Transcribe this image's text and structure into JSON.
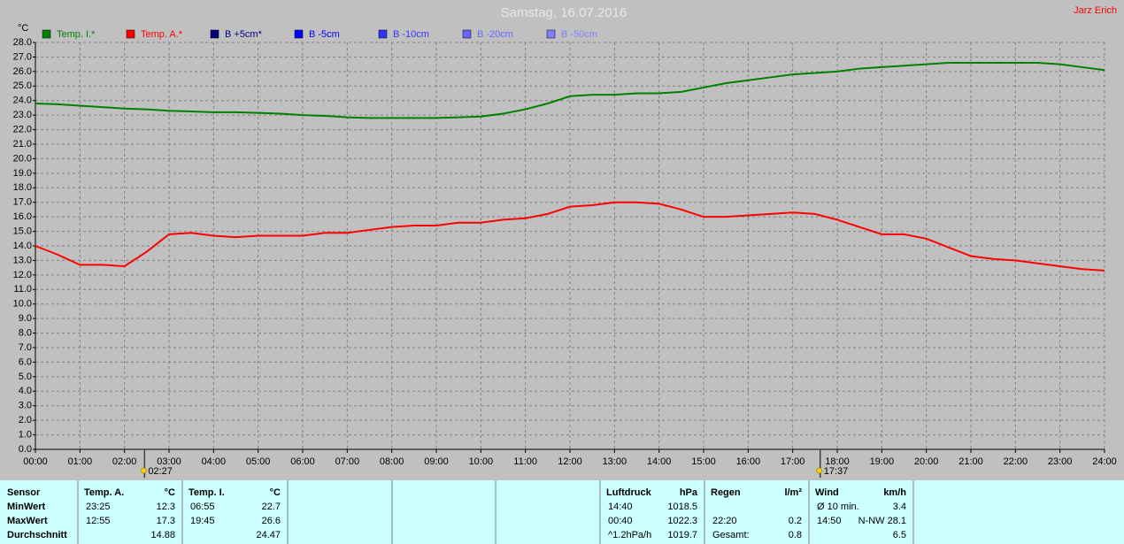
{
  "chart_data": {
    "type": "line",
    "title": "Samstag, 16.07.2016",
    "author": "Jarz Erich",
    "y_label": "°C",
    "x": [
      0,
      0.5,
      1,
      1.5,
      2,
      2.5,
      3,
      3.5,
      4,
      4.5,
      5,
      5.5,
      6,
      6.5,
      7,
      7.5,
      8,
      8.5,
      9,
      9.5,
      10,
      10.5,
      11,
      11.5,
      12,
      12.5,
      13,
      13.5,
      14,
      14.5,
      15,
      15.5,
      16,
      16.5,
      17,
      17.5,
      18,
      18.5,
      19,
      19.5,
      20,
      20.5,
      21,
      21.5,
      22,
      22.5,
      23,
      23.5,
      24
    ],
    "series": [
      {
        "name": "Temp. I.*",
        "color": "#008000",
        "values": [
          23.8,
          23.75,
          23.65,
          23.55,
          23.45,
          23.4,
          23.3,
          23.25,
          23.2,
          23.2,
          23.15,
          23.1,
          23.0,
          22.95,
          22.85,
          22.8,
          22.8,
          22.8,
          22.8,
          22.85,
          22.9,
          23.1,
          23.4,
          23.8,
          24.3,
          24.4,
          24.4,
          24.5,
          24.5,
          24.6,
          24.9,
          25.2,
          25.4,
          25.6,
          25.8,
          25.9,
          26.0,
          26.2,
          26.3,
          26.4,
          26.5,
          26.6,
          26.6,
          26.6,
          26.6,
          26.6,
          26.5,
          26.3,
          26.1
        ]
      },
      {
        "name": "Temp. A.*",
        "color": "#ff0000",
        "values": [
          14.0,
          13.4,
          12.7,
          12.7,
          12.6,
          13.6,
          14.8,
          14.9,
          14.7,
          14.6,
          14.7,
          14.7,
          14.7,
          14.9,
          14.9,
          15.1,
          15.3,
          15.4,
          15.4,
          15.6,
          15.6,
          15.8,
          15.9,
          16.2,
          16.7,
          16.8,
          17.0,
          17.0,
          16.9,
          16.5,
          16.0,
          16.0,
          16.1,
          16.2,
          16.3,
          16.2,
          15.8,
          15.3,
          14.8,
          14.8,
          14.5,
          13.9,
          13.3,
          13.1,
          13.0,
          12.8,
          12.6,
          12.4,
          12.3
        ]
      },
      {
        "name": "B +5cm*",
        "color": "#000080"
      },
      {
        "name": "B -5cm",
        "color": "#0000ff"
      },
      {
        "name": "B -10cm",
        "color": "#3333ff"
      },
      {
        "name": "B -20cm",
        "color": "#6666ff"
      },
      {
        "name": "B -50cm",
        "color": "#8080ff"
      }
    ],
    "xlim": [
      0,
      24
    ],
    "xticks": [
      {
        "value": 0,
        "label": "00:00"
      },
      {
        "value": 1,
        "label": "01:00"
      },
      {
        "value": 2,
        "label": "02:00"
      },
      {
        "value": 3,
        "label": "03:00"
      },
      {
        "value": 4,
        "label": "04:00"
      },
      {
        "value": 5,
        "label": "05:00"
      },
      {
        "value": 6,
        "label": "06:00"
      },
      {
        "value": 7,
        "label": "07:00"
      },
      {
        "value": 8,
        "label": "08:00"
      },
      {
        "value": 9,
        "label": "09:00"
      },
      {
        "value": 10,
        "label": "10:00"
      },
      {
        "value": 11,
        "label": "11:00"
      },
      {
        "value": 12,
        "label": "12:00"
      },
      {
        "value": 13,
        "label": "13:00"
      },
      {
        "value": 14,
        "label": "14:00"
      },
      {
        "value": 15,
        "label": "15:00"
      },
      {
        "value": 16,
        "label": "16:00"
      },
      {
        "value": 17,
        "label": "17:00"
      },
      {
        "value": 18,
        "label": "18:00"
      },
      {
        "value": 19,
        "label": "19:00"
      },
      {
        "value": 20,
        "label": "20:00"
      },
      {
        "value": 21,
        "label": "21:00"
      },
      {
        "value": 22,
        "label": "22:00"
      },
      {
        "value": 23,
        "label": "23:00"
      },
      {
        "value": 24,
        "label": "24:00"
      }
    ],
    "ylim": [
      0,
      28
    ],
    "yticks": [
      {
        "value": 0,
        "label": "0.0"
      },
      {
        "value": 1,
        "label": "1.0"
      },
      {
        "value": 2,
        "label": "2.0"
      },
      {
        "value": 3,
        "label": "3.0"
      },
      {
        "value": 4,
        "label": "4.0"
      },
      {
        "value": 5,
        "label": "5.0"
      },
      {
        "value": 6,
        "label": "6.0"
      },
      {
        "value": 7,
        "label": "7.0"
      },
      {
        "value": 8,
        "label": "8.0"
      },
      {
        "value": 9,
        "label": "9.0"
      },
      {
        "value": 10,
        "label": "10.0"
      },
      {
        "value": 11,
        "label": "11.0"
      },
      {
        "value": 12,
        "label": "12.0"
      },
      {
        "value": 13,
        "label": "13.0"
      },
      {
        "value": 14,
        "label": "14.0"
      },
      {
        "value": 15,
        "label": "15.0"
      },
      {
        "value": 16,
        "label": "16.0"
      },
      {
        "value": 17,
        "label": "17.0"
      },
      {
        "value": 18,
        "label": "18.0"
      },
      {
        "value": 19,
        "label": "19.0"
      },
      {
        "value": 20,
        "label": "20.0"
      },
      {
        "value": 21,
        "label": "21.0"
      },
      {
        "value": 22,
        "label": "22.0"
      },
      {
        "value": 23,
        "label": "23.0"
      },
      {
        "value": 24,
        "label": "24.0"
      },
      {
        "value": 25,
        "label": "25.0"
      },
      {
        "value": 26,
        "label": "26.0"
      },
      {
        "value": 27,
        "label": "27.0"
      },
      {
        "value": 28,
        "label": "28.0"
      }
    ],
    "grid": true,
    "sun_events": [
      "02:27",
      "17:37"
    ]
  },
  "stats": {
    "row_labels": [
      "Sensor",
      "MinWert",
      "MaxWert",
      "Durchschnitt"
    ],
    "groups": [
      {
        "title": "Temp. A.",
        "unit": "°C",
        "rows": [
          [
            "23:25",
            12.3
          ],
          [
            "12:55",
            17.3
          ],
          [
            null,
            14.88
          ]
        ]
      },
      {
        "title": "Temp. I.",
        "unit": "°C",
        "rows": [
          [
            "06:55",
            22.7
          ],
          [
            "19:45",
            26.6
          ],
          [
            null,
            24.47
          ]
        ]
      },
      {
        "title": "Luftdruck",
        "unit": "hPa",
        "rows": [
          [
            "14:40",
            1018.5
          ],
          [
            "00:40",
            1022.3
          ],
          [
            "^1.2hPa/h",
            1019.7
          ]
        ]
      },
      {
        "title": "Regen",
        "unit": "l/m²",
        "rows": [
          [
            null,
            null
          ],
          [
            "22:20",
            0.2
          ],
          [
            "Gesamt:",
            0.8
          ]
        ]
      },
      {
        "title": "Wind",
        "unit": "km/h",
        "rows": [
          [
            "Ø 10 min.",
            3.4
          ],
          [
            "14:50",
            "N-NW 28.1"
          ],
          [
            null,
            6.5
          ]
        ]
      }
    ]
  }
}
